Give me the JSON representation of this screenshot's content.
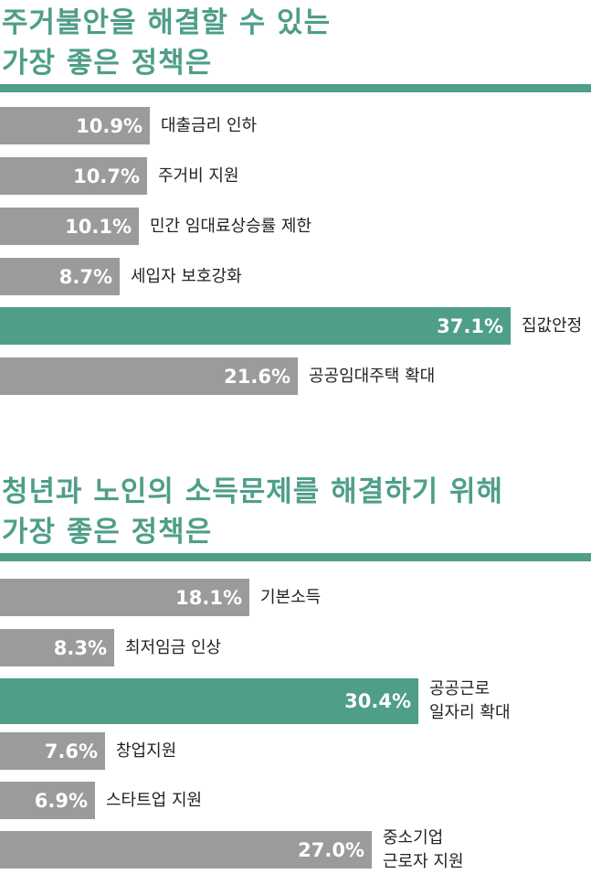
{
  "chart_data": [
    {
      "type": "bar",
      "title_lines": [
        "주거불안을 해결할 수 있는",
        "가장 좋은 정책은"
      ],
      "categories": [
        "대출금리 인하",
        "주거비 지원",
        "민간 임대료상승률 제한",
        "세입자 보호강화",
        "집값안정",
        "공공임대주택 확대"
      ],
      "values": [
        10.9,
        10.7,
        10.1,
        8.7,
        37.1,
        21.6
      ],
      "value_labels": [
        "10.9%",
        "10.7%",
        "10.1%",
        "8.7%",
        "37.1%",
        "21.6%"
      ],
      "highlight_index": 4,
      "unit": "%"
    },
    {
      "type": "bar",
      "title_lines": [
        "청년과 노인의 소득문제를 해결하기 위해",
        "가장 좋은 정책은"
      ],
      "categories": [
        "기본소득",
        "최저임금 인상",
        "공공근로\n일자리 확대",
        "창업지원",
        "스타트업 지원",
        "중소기업\n근로자 지원"
      ],
      "values": [
        18.1,
        8.3,
        30.4,
        7.6,
        6.9,
        27.0
      ],
      "value_labels": [
        "18.1%",
        "8.3%",
        "30.4%",
        "7.6%",
        "6.9%",
        "27.0%"
      ],
      "highlight_index": 2,
      "unit": "%"
    }
  ],
  "colors": {
    "accent": "#4e9e88",
    "bar": "#9b9b9b",
    "value_text": "#ffffff",
    "label_text": "#222222"
  }
}
